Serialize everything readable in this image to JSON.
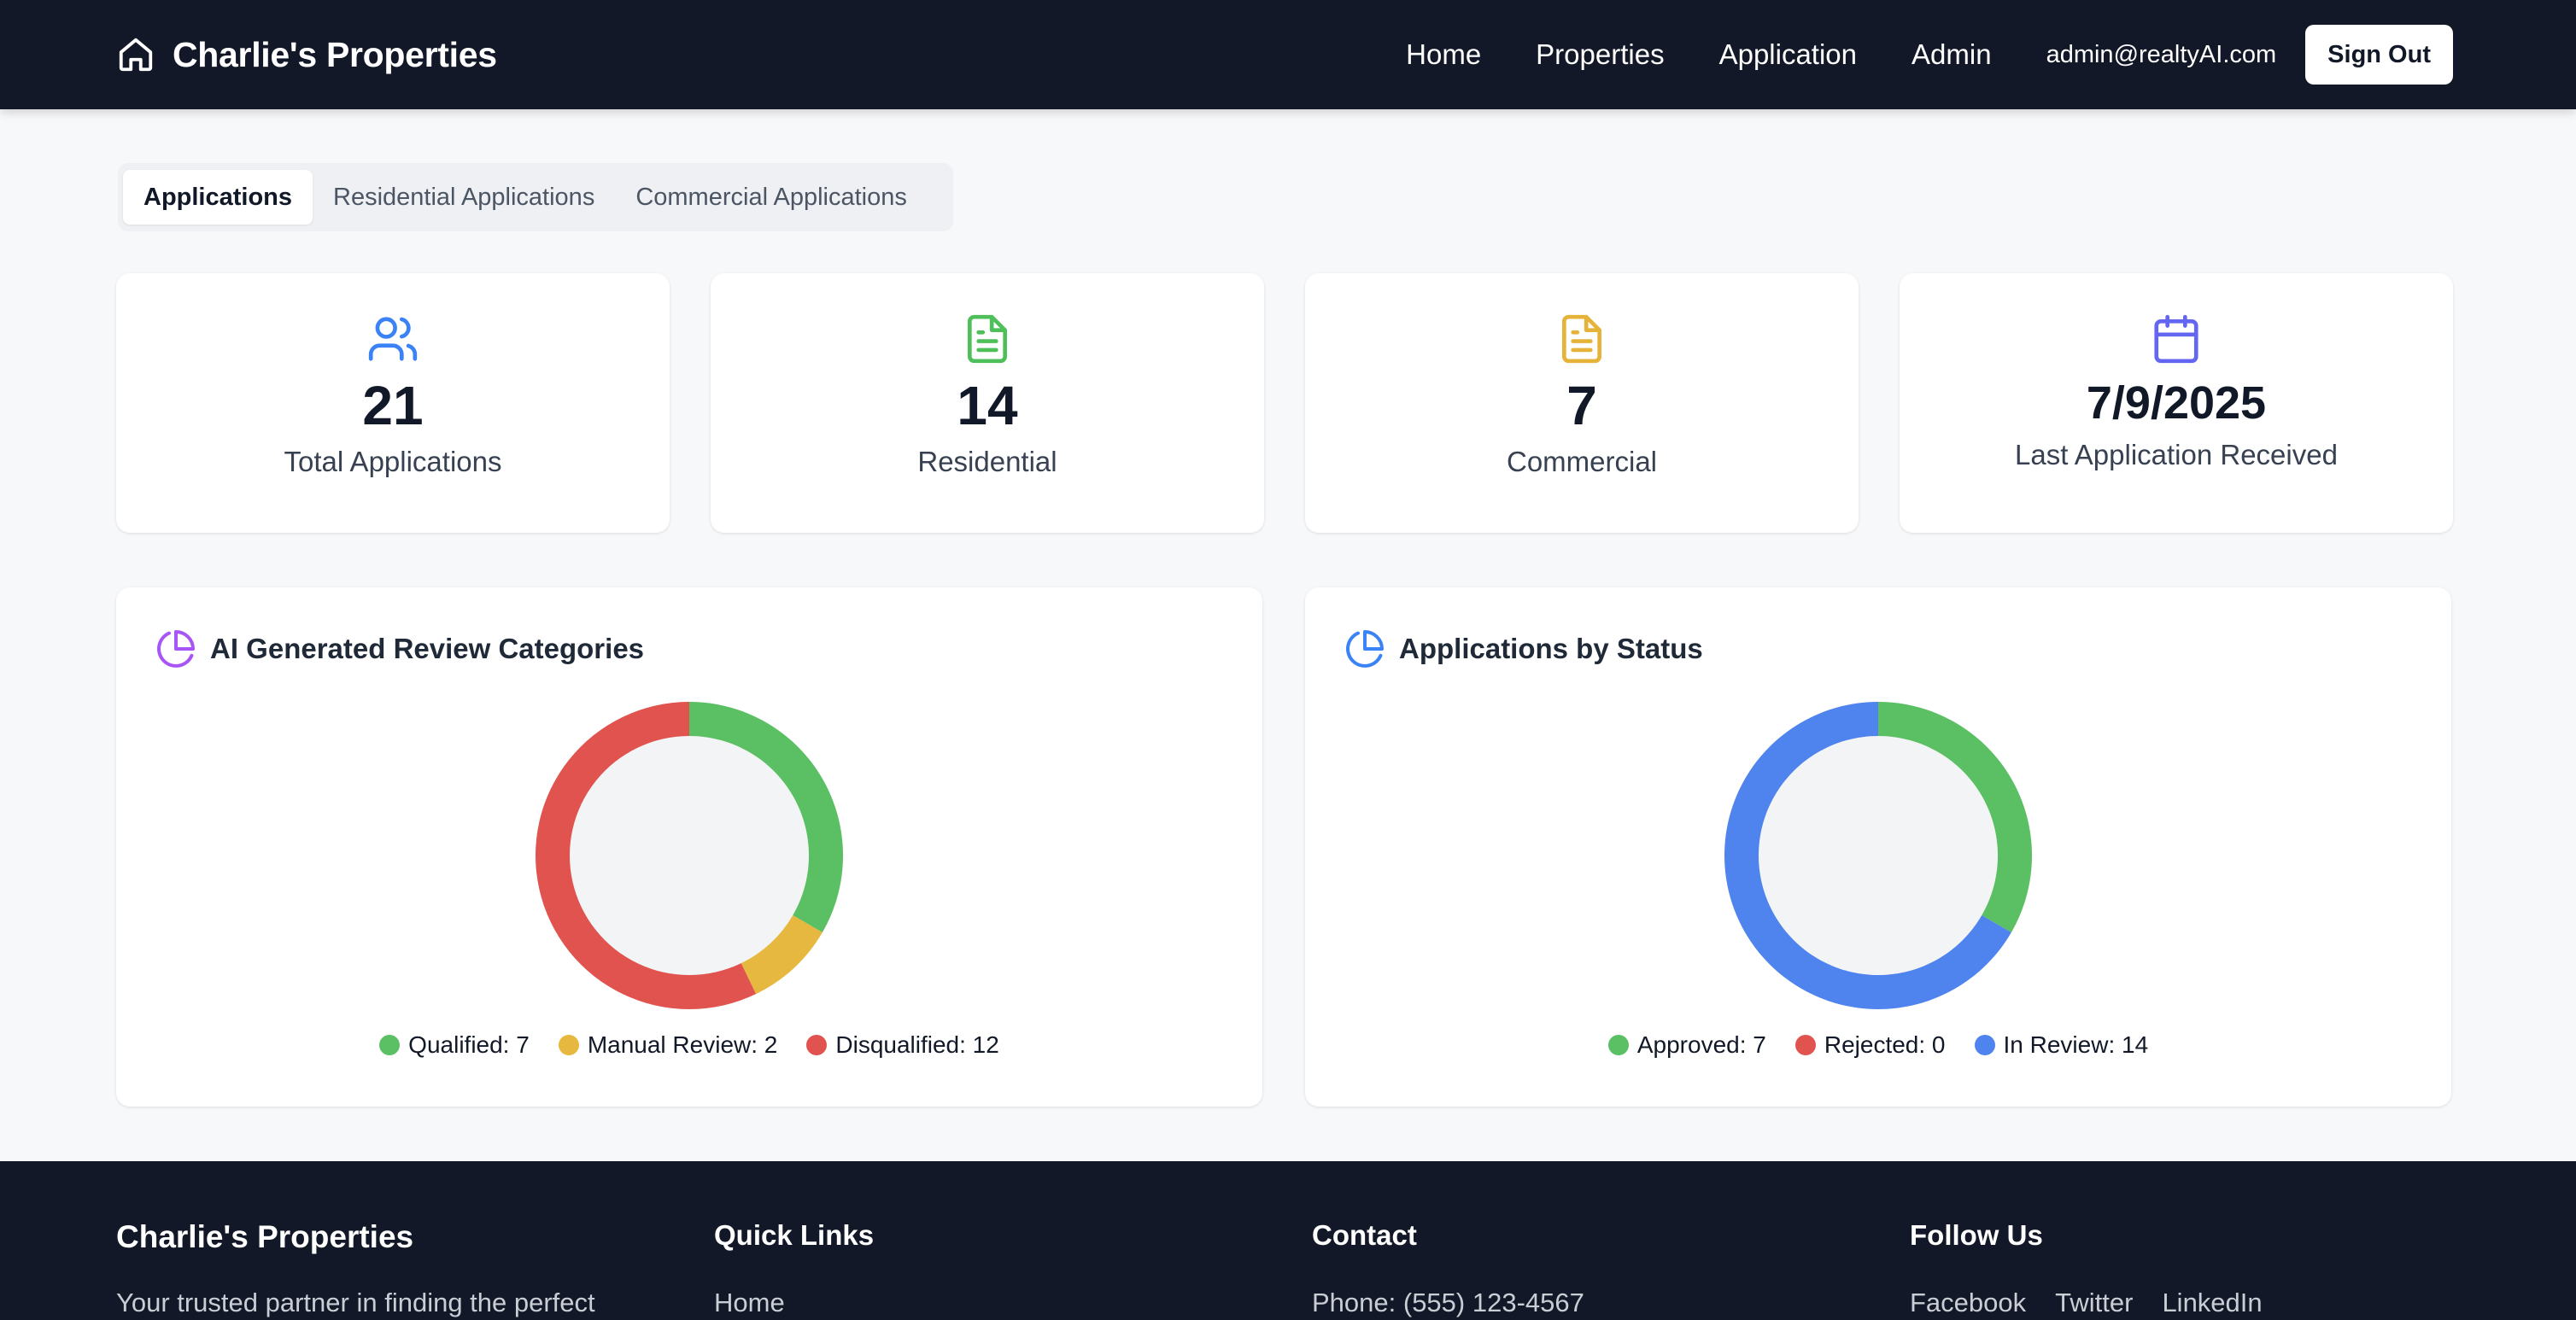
{
  "header": {
    "brand": "Charlie's Properties",
    "nav": [
      "Home",
      "Properties",
      "Application",
      "Admin"
    ],
    "email": "admin@realtyAI.com",
    "signout": "Sign Out"
  },
  "tabs": [
    "Applications",
    "Residential Applications",
    "Commercial Applications"
  ],
  "stats": [
    {
      "value": "21",
      "label": "Total Applications",
      "icon": "users-icon",
      "color": "#3b82f6"
    },
    {
      "value": "14",
      "label": "Residential",
      "icon": "document-icon",
      "color": "#4fbf5a"
    },
    {
      "value": "7",
      "label": "Commercial",
      "icon": "document-icon",
      "color": "#e5b33a"
    },
    {
      "value": "7/9/2025",
      "label": "Last Application Received",
      "icon": "calendar-icon",
      "color": "#6366f1"
    }
  ],
  "chart_data": [
    {
      "type": "pie",
      "title": "AI Generated Review Categories",
      "categories": [
        "Qualified",
        "Manual Review",
        "Disqualified"
      ],
      "values": [
        7,
        2,
        12
      ],
      "colors": [
        "#5bbf63",
        "#e7b83f",
        "#e0534f"
      ],
      "legend": [
        "Qualified: 7",
        "Manual Review: 2",
        "Disqualified: 12"
      ],
      "icon_color": "#a855f7"
    },
    {
      "type": "pie",
      "title": "Applications by Status",
      "categories": [
        "Approved",
        "Rejected",
        "In Review"
      ],
      "values": [
        7,
        0,
        14
      ],
      "colors": [
        "#5bbf63",
        "#e0534f",
        "#4f83ee"
      ],
      "legend": [
        "Approved: 7",
        "Rejected: 0",
        "In Review: 14"
      ],
      "icon_color": "#3b82f6"
    }
  ],
  "footer": {
    "brand": "Charlie's Properties",
    "tagline": "Your trusted partner in finding the perfect",
    "quick_links_title": "Quick Links",
    "quick_links": [
      "Home"
    ],
    "contact_title": "Contact",
    "phone": "Phone: (555) 123-4567",
    "follow_title": "Follow Us",
    "social": [
      "Facebook",
      "Twitter",
      "LinkedIn"
    ]
  }
}
